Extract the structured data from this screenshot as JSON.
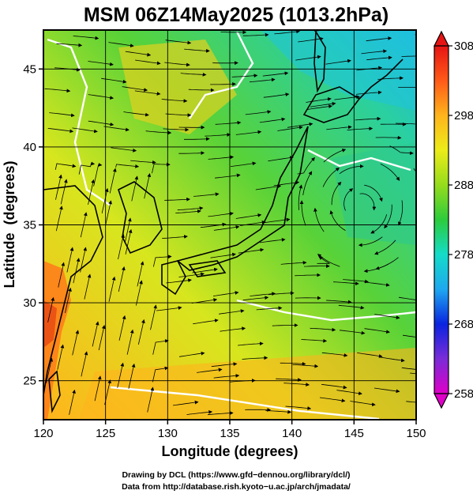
{
  "chart_data": {
    "type": "heatmap",
    "title": "MSM 06Z14May2025 (1013.2hPa)",
    "xlabel": "Longitude (degrees)",
    "ylabel": "Latitude  (degrees)",
    "xlim": [
      120,
      150
    ],
    "ylim": [
      22.5,
      47.5
    ],
    "x_ticks": [
      120,
      125,
      130,
      135,
      140,
      145,
      150
    ],
    "y_ticks": [
      25,
      30,
      35,
      40,
      45
    ],
    "grid": true,
    "colorbar": {
      "placement": "right",
      "min": 258,
      "max": 308,
      "ticks": [
        258,
        268,
        278,
        288,
        298,
        308
      ],
      "colors": [
        "#e000c8",
        "#7a2cd8",
        "#0a24e0",
        "#1ea8f0",
        "#14dcc8",
        "#2ccc3c",
        "#96dc1c",
        "#ecec18",
        "#ffb41c",
        "#ff5a18",
        "#e61414"
      ]
    },
    "streamlines": "wind",
    "contour_color": "#ffffff"
  },
  "credits": {
    "line1": "Drawing by DCL (https://www.gfd−dennou.org/library/dcl/)",
    "line2": "Data from http://database.rish.kyoto−u.ac.jp/arch/jmadata/"
  }
}
